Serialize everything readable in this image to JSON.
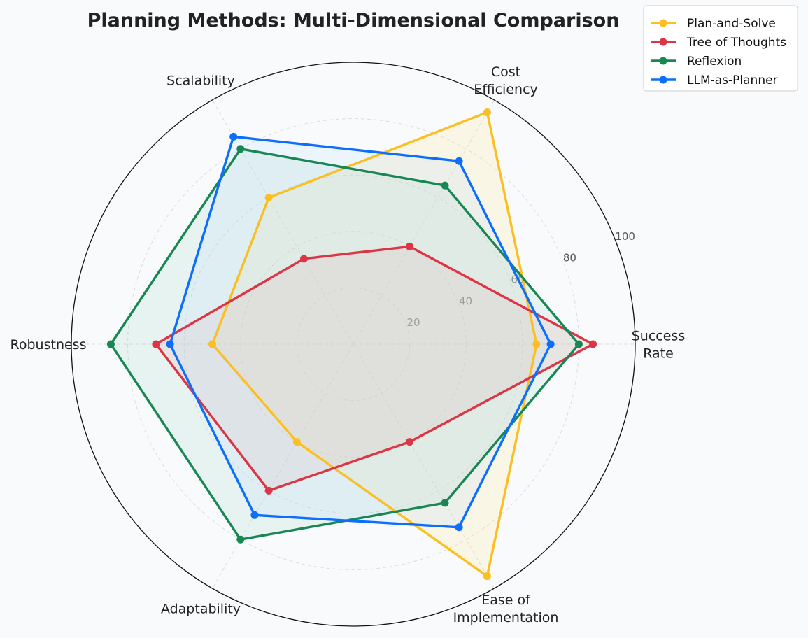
{
  "chart_data": {
    "type": "radar",
    "title": "Planning Methods: Multi-Dimensional Comparison",
    "axes": [
      [
        "Success",
        "Rate"
      ],
      [
        "Cost",
        "Efficiency"
      ],
      [
        "Scalability"
      ],
      [
        "Robustness"
      ],
      [
        "Adaptability"
      ],
      [
        "Ease of",
        "Implementation"
      ]
    ],
    "rlim": [
      0,
      100
    ],
    "rticks": [
      20,
      40,
      60,
      80,
      100
    ],
    "grid": true,
    "legend_position": "top-right",
    "series": [
      {
        "name": "Plan-and-Solve",
        "color": "#fbbf24",
        "fill": "#fde68a",
        "values": [
          65,
          95,
          60,
          50,
          40,
          95
        ]
      },
      {
        "name": "Tree of Thoughts",
        "color": "#dc3545",
        "fill": "#fca5a5",
        "values": [
          85,
          40,
          35,
          70,
          60,
          40
        ]
      },
      {
        "name": "Reflexion",
        "color": "#198754",
        "fill": "#a7d7c5",
        "values": [
          80,
          65,
          80,
          86,
          80,
          65
        ]
      },
      {
        "name": "LLM-as-Planner",
        "color": "#0d6efd",
        "fill": "#bfdbfe",
        "values": [
          70,
          75,
          85,
          65,
          70,
          75
        ]
      }
    ]
  }
}
